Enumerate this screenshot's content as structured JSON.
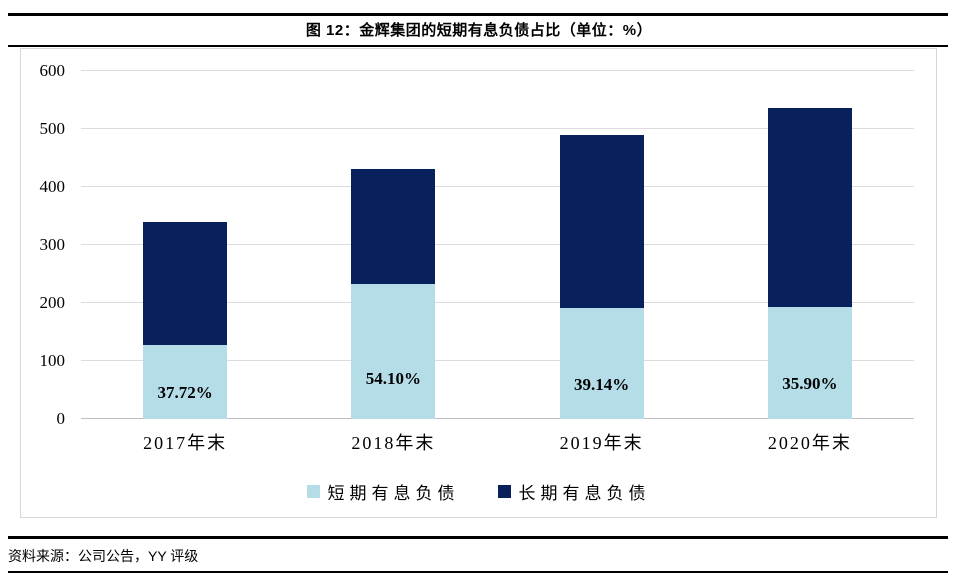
{
  "title": "图 12：金辉集团的短期有息负债占比（单位：%）",
  "source": "资料来源：公司公告，YY 评级",
  "colors": {
    "short_term": "#B5DDE8",
    "long_term": "#08215C",
    "gridline": "#DCDCDC",
    "box_border": "#D6D6D6",
    "rule": "#000000"
  },
  "chart_data": {
    "type": "bar",
    "stacked": true,
    "title": "图 12：金辉集团的短期有息负债占比（单位：%）",
    "xlabel": "",
    "ylabel": "",
    "unit": "%",
    "categories": [
      "2017年末",
      "2018年末",
      "2019年末",
      "2020年末"
    ],
    "series": [
      {
        "name": "短期有息负债",
        "color": "#B5DDE8",
        "values": [
          128,
          233,
          192,
          193
        ]
      },
      {
        "name": "长期有息负债",
        "color": "#08215C",
        "values": [
          212,
          198,
          298,
          344
        ]
      }
    ],
    "totals": [
      340,
      431,
      490,
      537
    ],
    "bar_labels": [
      "37.72%",
      "54.10%",
      "39.14%",
      "35.90%"
    ],
    "ylim": [
      0,
      600
    ],
    "ytick_step": 100,
    "yticks": [
      0,
      100,
      200,
      300,
      400,
      500,
      600
    ],
    "grid": true,
    "legend_position": "bottom"
  }
}
